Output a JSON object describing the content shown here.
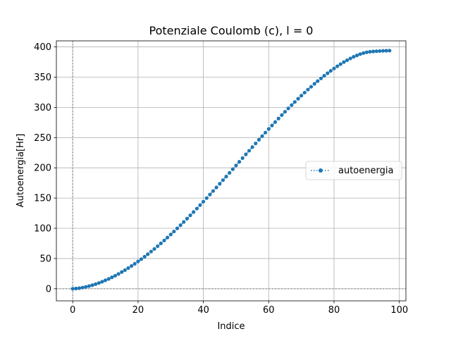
{
  "chart_data": {
    "type": "line",
    "title": "Potenziale Coulomb (c), l = 0",
    "xlabel": "Indice",
    "ylabel": "Autoenergia[Hr]",
    "xlim": [
      -5,
      102
    ],
    "ylim": [
      -20,
      410
    ],
    "xticks": [
      0,
      20,
      40,
      60,
      80,
      100
    ],
    "xtick_labels": [
      "0",
      "20",
      "40",
      "60",
      "80",
      "100"
    ],
    "yticks": [
      0,
      50,
      100,
      150,
      200,
      250,
      300,
      350,
      400
    ],
    "ytick_labels": [
      "0",
      "50",
      "100",
      "150",
      "200",
      "250",
      "300",
      "350",
      "400"
    ],
    "grid": true,
    "reference_lines": {
      "x": 0,
      "y": 0
    },
    "legend_position": "center-right",
    "series": [
      {
        "name": "autoenergia",
        "color": "#1f77b4",
        "linestyle": "dotted",
        "marker": "circle",
        "x": [
          0,
          1,
          2,
          3,
          4,
          5,
          6,
          7,
          8,
          9,
          10,
          11,
          12,
          13,
          14,
          15,
          16,
          17,
          18,
          19,
          20,
          21,
          22,
          23,
          24,
          25,
          26,
          27,
          28,
          29,
          30,
          31,
          32,
          33,
          34,
          35,
          36,
          37,
          38,
          39,
          40,
          41,
          42,
          43,
          44,
          45,
          46,
          47,
          48,
          49,
          50,
          51,
          52,
          53,
          54,
          55,
          56,
          57,
          58,
          59,
          60,
          61,
          62,
          63,
          64,
          65,
          66,
          67,
          68,
          69,
          70,
          71,
          72,
          73,
          74,
          75,
          76,
          77,
          78,
          79,
          80,
          81,
          82,
          83,
          84,
          85,
          86,
          87,
          88,
          89,
          90,
          91,
          92,
          93,
          94,
          95,
          96,
          97
        ],
        "y": [
          0.0,
          0.4,
          1.0,
          1.9,
          3.1,
          4.4,
          5.9,
          7.6,
          9.5,
          11.6,
          13.9,
          16.3,
          18.9,
          21.6,
          24.5,
          27.6,
          30.8,
          34.2,
          37.7,
          41.3,
          45.1,
          49.0,
          53.0,
          57.2,
          61.5,
          65.9,
          70.4,
          75.1,
          79.8,
          84.7,
          89.7,
          94.7,
          99.9,
          105.1,
          110.5,
          115.9,
          121.4,
          127.0,
          132.6,
          138.3,
          144.1,
          149.9,
          155.8,
          161.7,
          167.6,
          173.6,
          179.6,
          185.7,
          191.7,
          197.8,
          203.9,
          210.0,
          216.1,
          222.2,
          228.3,
          234.3,
          240.4,
          246.4,
          252.4,
          258.3,
          264.2,
          270.0,
          275.8,
          281.5,
          287.2,
          292.8,
          298.3,
          303.7,
          309.0,
          314.3,
          319.4,
          324.4,
          329.4,
          334.2,
          338.9,
          343.5,
          347.9,
          352.3,
          356.4,
          360.5,
          364.3,
          368.0,
          371.5,
          374.9,
          378.0,
          380.9,
          383.6,
          386.0,
          388.1,
          389.8,
          391.1,
          392.0,
          392.5,
          392.9,
          393.2,
          393.5,
          393.7,
          393.9
        ]
      }
    ]
  }
}
